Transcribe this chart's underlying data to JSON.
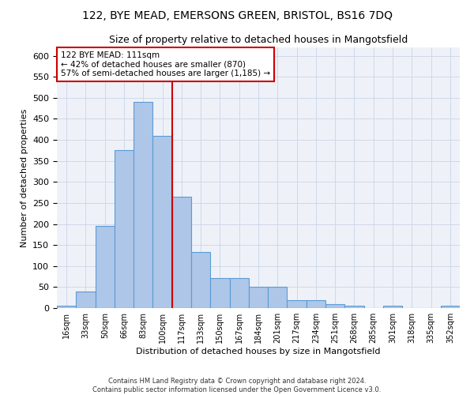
{
  "title1": "122, BYE MEAD, EMERSONS GREEN, BRISTOL, BS16 7DQ",
  "title2": "Size of property relative to detached houses in Mangotsfield",
  "xlabel": "Distribution of detached houses by size in Mangotsfield",
  "ylabel": "Number of detached properties",
  "categories": [
    "16sqm",
    "33sqm",
    "50sqm",
    "66sqm",
    "83sqm",
    "100sqm",
    "117sqm",
    "133sqm",
    "150sqm",
    "167sqm",
    "184sqm",
    "201sqm",
    "217sqm",
    "234sqm",
    "251sqm",
    "268sqm",
    "285sqm",
    "301sqm",
    "318sqm",
    "335sqm",
    "352sqm"
  ],
  "values": [
    5,
    40,
    195,
    375,
    490,
    410,
    265,
    133,
    72,
    72,
    50,
    50,
    18,
    18,
    10,
    5,
    0,
    5,
    0,
    0,
    5
  ],
  "bar_color": "#aec6e8",
  "bar_edge_color": "#5b9bd5",
  "annotation_text_line1": "122 BYE MEAD: 111sqm",
  "annotation_text_line2": "← 42% of detached houses are smaller (870)",
  "annotation_text_line3": "57% of semi-detached houses are larger (1,185) →",
  "annotation_box_color": "#ffffff",
  "annotation_box_edge_color": "#cc0000",
  "vline_color": "#cc0000",
  "vline_x_index": 5.5,
  "ylim": [
    0,
    620
  ],
  "yticks": [
    0,
    50,
    100,
    150,
    200,
    250,
    300,
    350,
    400,
    450,
    500,
    550,
    600
  ],
  "grid_color": "#d0d8e8",
  "bg_color": "#eef2f8",
  "footer_line1": "Contains HM Land Registry data © Crown copyright and database right 2024.",
  "footer_line2": "Contains public sector information licensed under the Open Government Licence v3.0."
}
